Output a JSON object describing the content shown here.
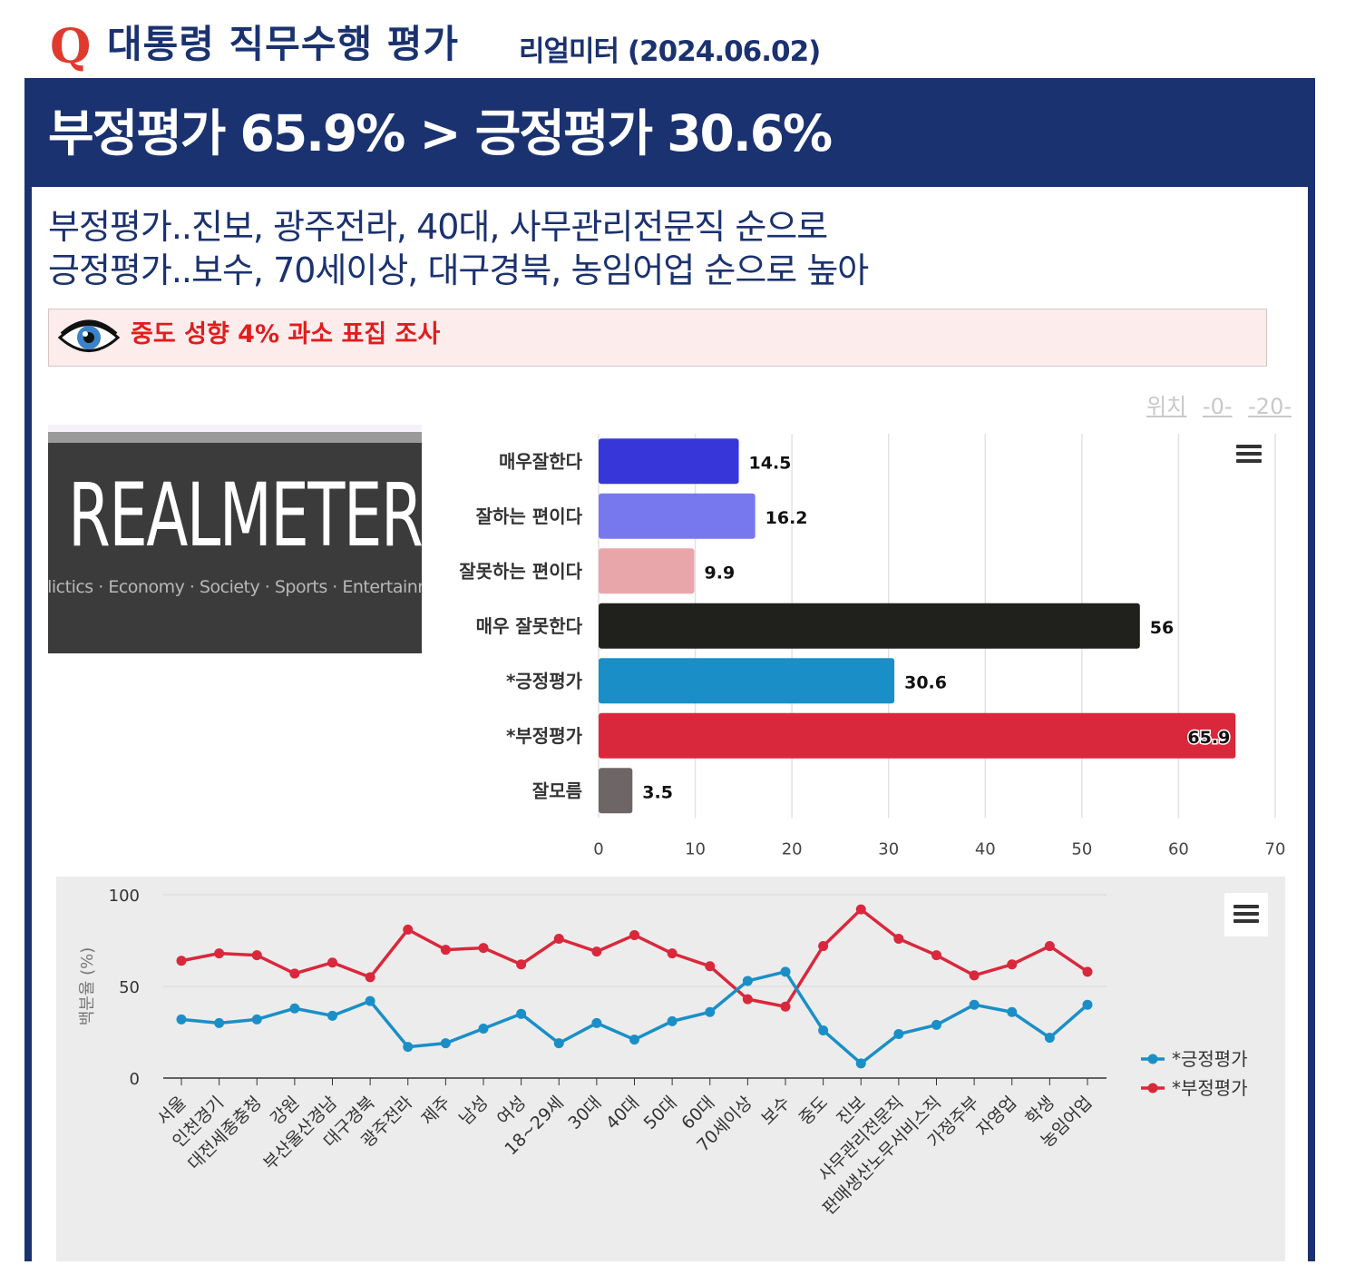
{
  "header": {
    "q_mark": "Q",
    "title": "대통령 직무수행 평가",
    "subtitle": "리얼미터 (2024.06.02)"
  },
  "headline": "부정평가 65.9% > 긍정평가 30.6%",
  "summary": {
    "line1": "부정평가..진보, 광주전라, 40대, 사무관리전문직 순으로",
    "line2": "긍정평가..보수, 70세이상, 대구경북, 농임어업 순으로 높아"
  },
  "notice": {
    "icon": "eye-icon",
    "text": "중도 성향 4% 과소 표집 조사"
  },
  "position_links": {
    "label": "위치",
    "link1": "-0-",
    "link2": "-20-"
  },
  "logo": {
    "wordmark": "REALMETER",
    "tagline": "olictics · Economy · Society · Sports · Entertainm"
  },
  "colors": {
    "navy": "#1b3270",
    "accent_red": "#e03a2f",
    "positive": "#1a8fc7",
    "negative": "#d9283c"
  },
  "chart_data": [
    {
      "type": "bar",
      "orientation": "horizontal",
      "categories": [
        "매우잘한다",
        "잘하는 편이다",
        "잘못하는 편이다",
        "매우 잘못한다",
        "*긍정평가",
        "*부정평가",
        "잘모름"
      ],
      "values": [
        14.5,
        16.2,
        9.9,
        56,
        30.6,
        65.9,
        3.5
      ],
      "value_labels": [
        "14.5",
        "16.2",
        "9.9",
        "56",
        "30.6",
        "65.9",
        "3.5"
      ],
      "bar_colors": [
        "#3636d9",
        "#7878ee",
        "#e8a6aa",
        "#20201c",
        "#1a8fc7",
        "#d9283c",
        "#6e6666"
      ],
      "xlim": [
        0,
        70
      ],
      "xticks": [
        "0",
        "10",
        "20",
        "30",
        "40",
        "50",
        "60",
        "70"
      ],
      "grid": true
    },
    {
      "type": "line",
      "categories": [
        "서울",
        "인천경기",
        "대전세종충청",
        "강원",
        "부산울산경남",
        "대구경북",
        "광주전라",
        "제주",
        "남성",
        "여성",
        "18~29세",
        "30대",
        "40대",
        "50대",
        "60대",
        "70세이상",
        "보수",
        "중도",
        "진보",
        "사무관리전문직",
        "판매생산노무서비스직",
        "가정주부",
        "자영업",
        "학생",
        "농임어업"
      ],
      "series": [
        {
          "name": "*긍정평가",
          "color": "#1a8fc7",
          "values": [
            32,
            30,
            32,
            38,
            34,
            42,
            17,
            19,
            27,
            35,
            19,
            30,
            21,
            31,
            36,
            53,
            58,
            26,
            8,
            24,
            29,
            40,
            36,
            22,
            40
          ]
        },
        {
          "name": "*부정평가",
          "color": "#d9283c",
          "values": [
            64,
            68,
            67,
            57,
            63,
            55,
            81,
            70,
            71,
            62,
            76,
            69,
            78,
            68,
            61,
            43,
            39,
            72,
            92,
            76,
            67,
            56,
            62,
            72,
            58
          ]
        }
      ],
      "ylabel": "백분율 (%)",
      "ylim": [
        0,
        100
      ],
      "yticks": [
        "0",
        "50",
        "100"
      ],
      "legend": "right",
      "grid": true
    }
  ]
}
